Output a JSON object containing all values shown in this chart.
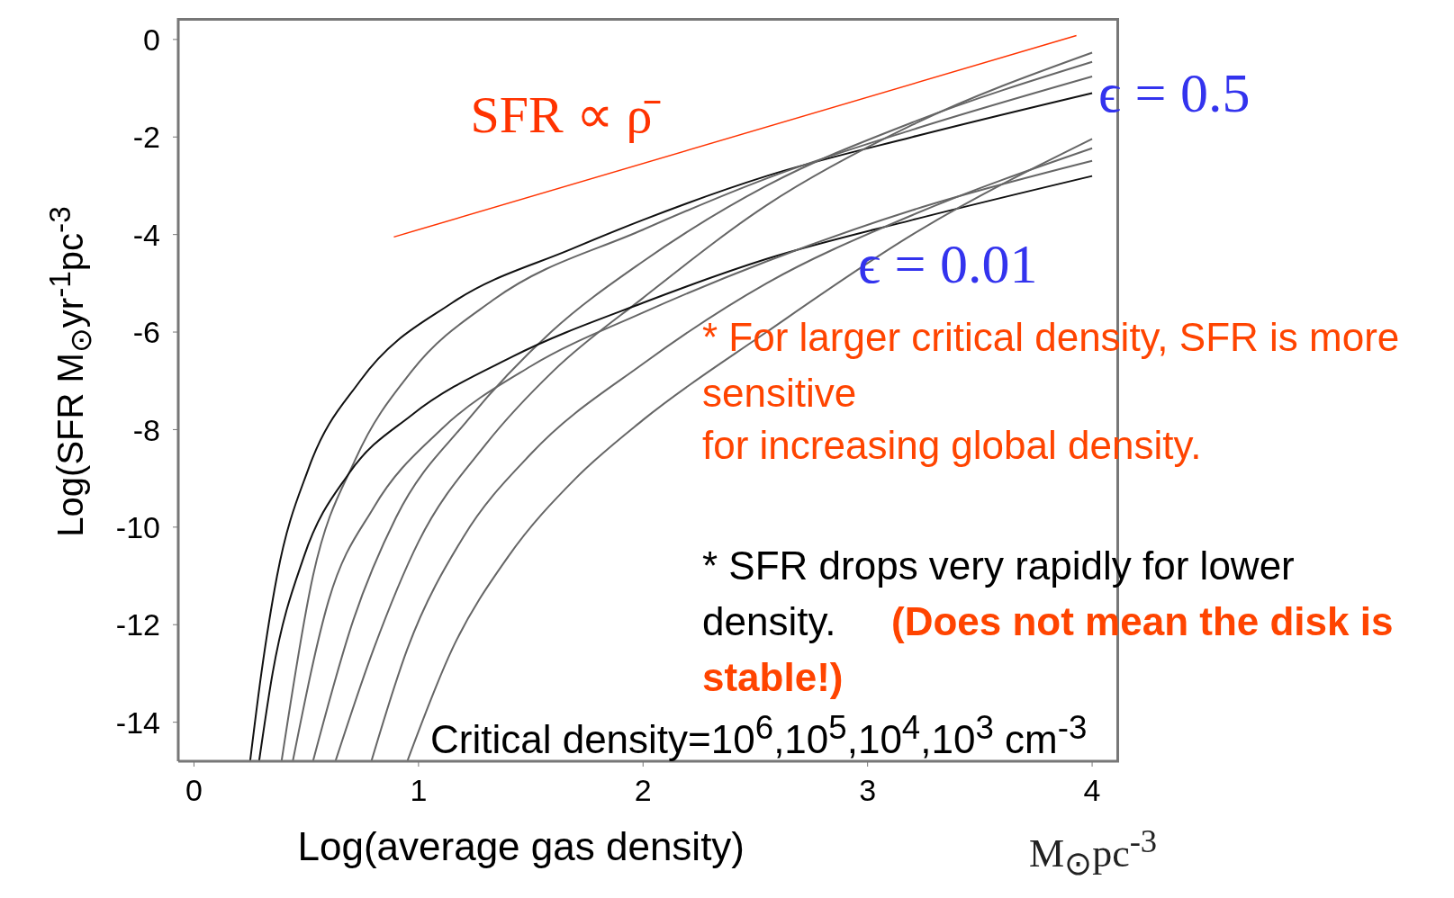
{
  "chart_data": {
    "type": "line",
    "xlabel": "Log(average gas density)",
    "ylabel": "Log(SFR M$_{⊙}$yr$^{-1}$pc$^{-3}$",
    "xlim": [
      -0.07,
      4.12
    ],
    "xticks": [
      0,
      1,
      2,
      3,
      4
    ],
    "ylim": [
      -14.8,
      0.44
    ],
    "yticks": [
      0,
      -2,
      -4,
      -6,
      -8,
      -10,
      -12,
      -14
    ],
    "series": [
      {
        "color": "#111111",
        "x": [
          0.25,
          0.3,
          0.37,
          0.51,
          0.74,
          1.15,
          1.68,
          2.0,
          2.55,
          3.2,
          4.0
        ],
        "values": [
          -14.8,
          -13,
          -11,
          -8.8,
          -7,
          -5.4,
          -4.3,
          -3.7,
          -2.8,
          -2.0,
          -1.1
        ]
      },
      {
        "color": "#666666",
        "x": [
          0.39,
          0.53,
          0.72,
          0.97,
          1.33,
          2.0,
          2.55,
          3.2,
          4.0
        ],
        "values": [
          -14.8,
          -11,
          -8.6,
          -6.8,
          -5.35,
          -3.9,
          -2.85,
          -1.85,
          -0.76
        ]
      },
      {
        "color": "#666666",
        "x": [
          0.53,
          0.71,
          0.9,
          1.22,
          1.59,
          2.0,
          2.55,
          3.2,
          4.0
        ],
        "values": [
          -14.8,
          -11.9,
          -9.8,
          -7.8,
          -6.0,
          -4.55,
          -3.0,
          -1.7,
          -0.46
        ]
      },
      {
        "color": "#666666",
        "x": [
          0.63,
          0.8,
          1.0,
          1.3,
          1.6,
          2.0,
          2.55,
          3.2,
          4.0
        ],
        "values": [
          -14.8,
          -12.5,
          -10.3,
          -8.3,
          -6.8,
          -5.3,
          -3.4,
          -1.75,
          -0.27
        ]
      },
      {
        "color": "#111111",
        "x": [
          0.29,
          0.35,
          0.49,
          0.69,
          0.97,
          1.42,
          2.0,
          2.55,
          3.2,
          4.0
        ],
        "values": [
          -14.8,
          -13,
          -10.6,
          -8.9,
          -7.7,
          -6.5,
          -5.4,
          -4.5,
          -3.7,
          -2.8
        ]
      },
      {
        "color": "#666666",
        "x": [
          0.44,
          0.6,
          0.8,
          1.1,
          1.5,
          2.0,
          2.55,
          3.2,
          4.0
        ],
        "values": [
          -14.8,
          -11.5,
          -9.6,
          -8.0,
          -6.7,
          -5.6,
          -4.55,
          -3.5,
          -2.49
        ]
      },
      {
        "color": "#666666",
        "x": [
          0.79,
          0.95,
          1.2,
          1.5,
          2.0,
          2.55,
          3.2,
          4.0
        ],
        "values": [
          -14.8,
          -12.5,
          -10.2,
          -8.5,
          -6.65,
          -5.0,
          -3.6,
          -2.23
        ]
      },
      {
        "color": "#666666",
        "x": [
          0.95,
          1.15,
          1.4,
          1.7,
          2.0,
          2.55,
          3.2,
          4.0
        ],
        "values": [
          -14.8,
          -12.5,
          -10.6,
          -9.0,
          -7.8,
          -6.0,
          -4.0,
          -2.04
        ]
      },
      {
        "name": "SFR ∝ ρ̄",
        "color": "#ff3300",
        "x": [
          0.89,
          3.93
        ],
        "values": [
          -4.05,
          0.08
        ]
      }
    ],
    "annotations": [
      "ϵ = 0.5",
      "ϵ = 0.01",
      "M$_{⊙}$pc$^{-3}$",
      "* For larger critical density, SFR is more sensitive",
      "for increasing global density.",
      "* SFR drops very rapidly for lower density.",
      "(Does not mean the disk is stable!)",
      "Critical density=10$^{6}$,10$^{5}$,10$^{4}$,10$^{3}$ cm$^{-3}$"
    ]
  }
}
